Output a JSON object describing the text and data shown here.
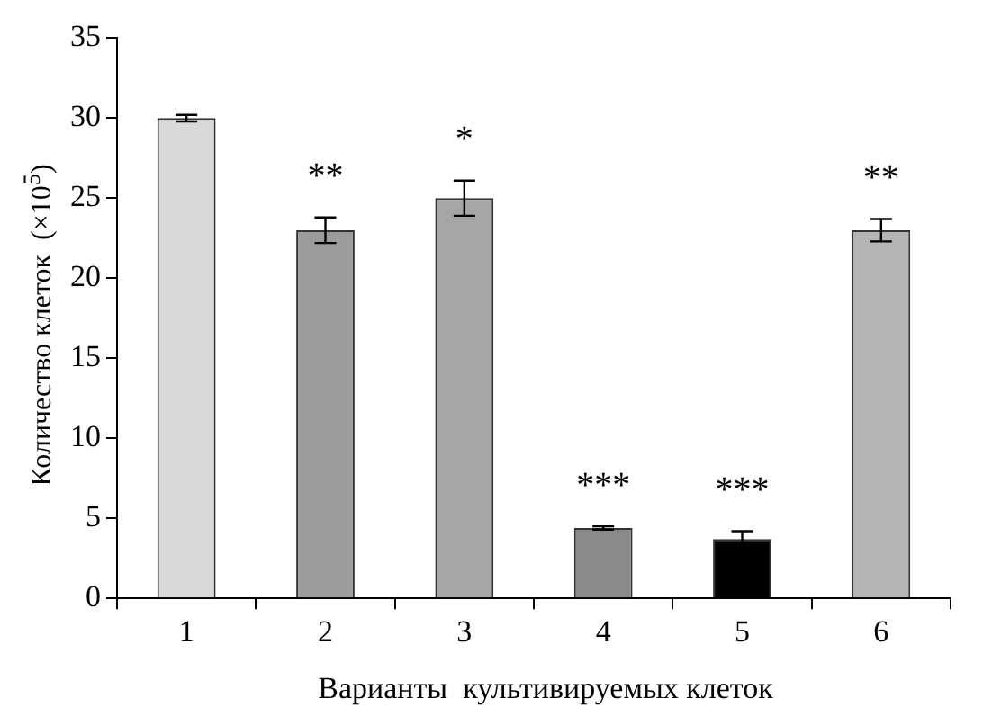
{
  "chart_data": {
    "type": "bar",
    "xlabel": "Варианты  культивируемых клеток",
    "ylabel": "Количество клеток  (×10$^{5}$)",
    "categories": [
      "1",
      "2",
      "3",
      "4",
      "5",
      "6"
    ],
    "values": [
      30.0,
      23.0,
      25.0,
      4.4,
      3.7,
      23.0
    ],
    "errors": [
      0.2,
      0.8,
      1.1,
      0.1,
      0.5,
      0.7
    ],
    "colors": [
      "#d9d9d9",
      "#9c9c9c",
      "#a6a6a6",
      "#8a8a8a",
      "#000000",
      "#b5b5b5"
    ],
    "ylim": [
      0,
      35
    ],
    "yticks": [
      0,
      5,
      10,
      15,
      20,
      25,
      30,
      35
    ],
    "grid": false,
    "annotations": [
      {
        "text": "**",
        "x": "2",
        "y": 23.0
      },
      {
        "text": "*",
        "x": "3",
        "y": 25.0
      },
      {
        "text": "***",
        "x": "4",
        "y": 4.4
      },
      {
        "text": "***",
        "x": "5",
        "y": 3.7
      },
      {
        "text": "**",
        "x": "6",
        "y": 23.0
      }
    ]
  }
}
